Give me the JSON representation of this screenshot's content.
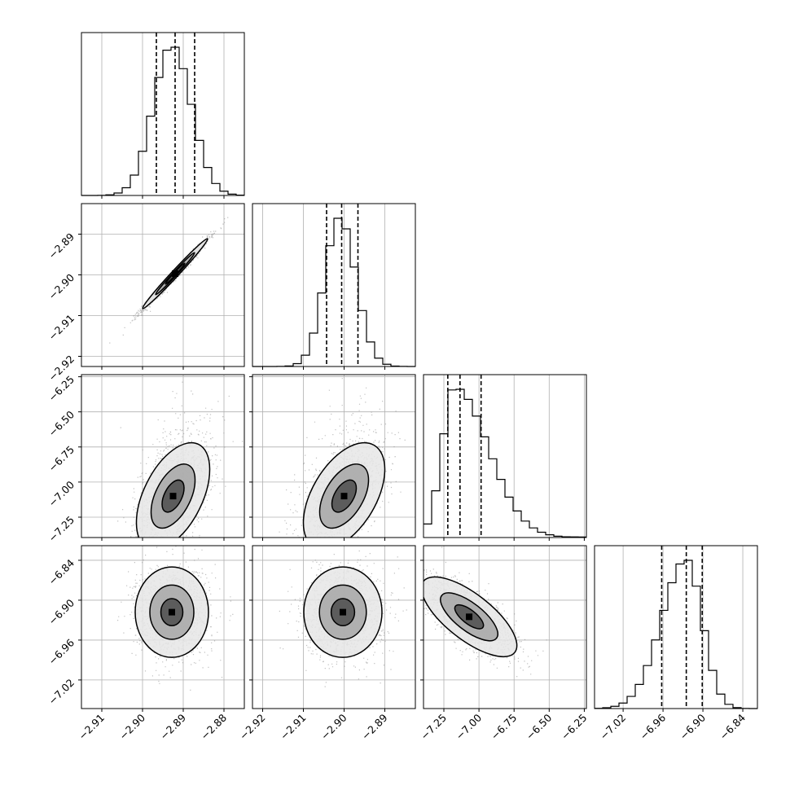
{
  "figure": {
    "type": "corner-plot",
    "n_params": 4,
    "grid": true
  },
  "chart_data": {
    "type": "corner",
    "params": [
      {
        "range": [
          -2.915,
          -2.875
        ],
        "ticks": [
          -2.91,
          -2.9,
          -2.89,
          -2.88
        ],
        "tick_labels": [
          "−2.91",
          "−2.90",
          "−2.89",
          "−2.88"
        ],
        "quantiles": [
          -2.8966,
          -2.892,
          -2.8872
        ],
        "mode": -2.8928
      },
      {
        "range": [
          -2.9225,
          -2.8825
        ],
        "ticks": [
          -2.92,
          -2.91,
          -2.9,
          -2.89
        ],
        "tick_labels": [
          "−2.92",
          "−2.91",
          "−2.90",
          "−2.89"
        ],
        "quantiles": [
          -2.9043,
          -2.9006,
          -2.8966
        ],
        "mode": -2.9011
      },
      {
        "range": [
          -7.395,
          -6.235
        ],
        "ticks": [
          -7.25,
          -7.0,
          -6.75,
          -6.5,
          -6.25
        ],
        "tick_labels": [
          "−7.25",
          "−7.00",
          "−6.75",
          "−6.50",
          "−6.25"
        ],
        "quantiles": [
          -7.222,
          -7.135,
          -6.985
        ],
        "mode": -7.175
      },
      {
        "range": [
          -7.063,
          -6.818
        ],
        "ticks": [
          -7.02,
          -6.96,
          -6.9,
          -6.84
        ],
        "tick_labels": [
          "−7.02",
          "−6.96",
          "−6.90",
          "−6.84"
        ],
        "quantiles": [
          -6.962,
          -6.925,
          -6.901
        ],
        "mode": -6.925
      }
    ],
    "pairs": [
      {
        "row": 1,
        "col": 0,
        "mean": [
          -2.892,
          -2.8997
        ],
        "sd": [
          0.004,
          0.0043
        ],
        "corr": 0.99
      },
      {
        "row": 2,
        "col": 0,
        "mean": [
          -2.8925,
          -7.1
        ],
        "sd": [
          0.0045,
          0.19
        ],
        "corr": 0.5
      },
      {
        "row": 2,
        "col": 1,
        "mean": [
          -2.9,
          -7.1
        ],
        "sd": [
          0.005,
          0.19
        ],
        "corr": 0.5
      },
      {
        "row": 3,
        "col": 0,
        "mean": [
          -2.8928,
          -6.918
        ],
        "sd": [
          0.0045,
          0.034
        ],
        "corr": 0.0
      },
      {
        "row": 3,
        "col": 1,
        "mean": [
          -2.9003,
          -6.918
        ],
        "sd": [
          0.0048,
          0.034
        ],
        "corr": 0.0
      },
      {
        "row": 3,
        "col": 2,
        "mean": [
          -7.07,
          -6.925
        ],
        "sd": [
          0.17,
          0.03
        ],
        "corr": -0.72
      }
    ],
    "histogram_bins": 20,
    "line_color": "#000000",
    "scatter_color": "#8c8c8c"
  }
}
